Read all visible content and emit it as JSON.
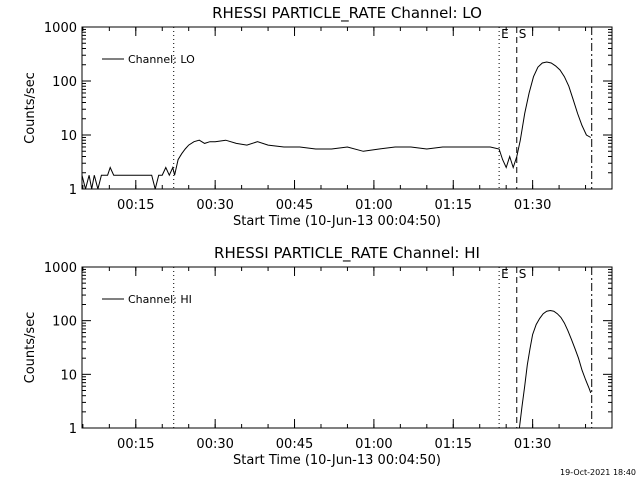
{
  "footer_timestamp": "19-Oct-2021 18:40",
  "chart_data": [
    {
      "type": "line",
      "title": "RHESSI PARTICLE_RATE Channel: LO",
      "xlabel": "Start Time (10-Jun-13 00:04:50)",
      "ylabel": "Counts/sec",
      "yscale": "log",
      "xlim": [
        "00:04:50",
        "01:45:00"
      ],
      "ylim": [
        1,
        1000
      ],
      "x_ticks": [
        "00:15",
        "00:30",
        "00:45",
        "01:00",
        "01:15",
        "01:30"
      ],
      "y_ticks": [
        "1",
        "10",
        "100",
        "1000"
      ],
      "legend": "top-left",
      "markers": [
        {
          "time": "00:22:10",
          "style": "dotted",
          "label": ""
        },
        {
          "time": "01:23:40",
          "style": "dotted",
          "label": "E"
        },
        {
          "time": "01:27:00",
          "style": "dashed",
          "label": "S"
        },
        {
          "time": "01:41:10",
          "style": "dashdot",
          "label": ""
        }
      ],
      "series": [
        {
          "name": "Channel: LO",
          "x": [
            "00:04:50",
            "00:05:30",
            "00:06:10",
            "00:06:40",
            "00:07:10",
            "00:07:50",
            "00:08:30",
            "00:09:10",
            "00:09:40",
            "00:10:10",
            "00:10:50",
            "00:11:30",
            "00:12:00",
            "00:12:30",
            "00:13:00",
            "00:13:30",
            "00:14:00",
            "00:14:40",
            "00:15:20",
            "00:16:00",
            "00:16:40",
            "00:17:20",
            "00:18:00",
            "00:18:40",
            "00:19:20",
            "00:20:00",
            "00:20:40",
            "00:21:20",
            "00:22:00",
            "00:22:20",
            "00:23:00",
            "00:23:40",
            "00:24:20",
            "00:25:00",
            "00:26:00",
            "00:27:00",
            "00:28:00",
            "00:29:00",
            "00:30:00",
            "00:32:00",
            "00:34:00",
            "00:36:00",
            "00:38:00",
            "00:40:00",
            "00:43:00",
            "00:46:00",
            "00:49:00",
            "00:52:00",
            "00:55:00",
            "00:58:00",
            "01:01:00",
            "01:04:00",
            "01:07:00",
            "01:10:00",
            "01:13:00",
            "01:16:00",
            "01:19:00",
            "01:22:00",
            "01:23:40",
            "01:24:20",
            "01:25:00",
            "01:25:40",
            "01:26:20",
            "01:27:00",
            "01:27:40",
            "01:28:30",
            "01:29:20",
            "01:30:10",
            "01:31:00",
            "01:31:50",
            "01:32:40",
            "01:33:30",
            "01:34:20",
            "01:35:10",
            "01:36:00",
            "01:36:50",
            "01:37:40",
            "01:38:30",
            "01:39:20",
            "01:40:10",
            "01:41:00"
          ],
          "y": [
            1.8,
            0.8,
            1.8,
            0.8,
            1.8,
            0.8,
            1.8,
            1.8,
            1.8,
            2.5,
            1.8,
            1.8,
            1.8,
            1.8,
            1.8,
            1.8,
            1.8,
            1.8,
            1.8,
            1.8,
            1.8,
            1.8,
            1.8,
            0.8,
            1.8,
            1.8,
            2.5,
            1.8,
            2.5,
            1.8,
            3.5,
            4.5,
            5.5,
            6.5,
            7.5,
            8,
            7,
            7.5,
            7.5,
            8,
            7,
            6.5,
            7.5,
            6.5,
            6,
            6,
            5.5,
            5.5,
            6,
            5,
            5.5,
            6,
            6,
            5.5,
            6,
            6,
            6,
            6,
            5.5,
            3.5,
            2.5,
            4,
            2.5,
            4,
            8,
            25,
            60,
            120,
            180,
            215,
            225,
            215,
            190,
            160,
            120,
            80,
            45,
            25,
            15,
            10,
            9
          ]
        }
      ]
    },
    {
      "type": "line",
      "title": "RHESSI PARTICLE_RATE Channel: HI",
      "xlabel": "Start Time (10-Jun-13 00:04:50)",
      "ylabel": "Counts/sec",
      "yscale": "log",
      "xlim": [
        "00:04:50",
        "01:45:00"
      ],
      "ylim": [
        1,
        1000
      ],
      "x_ticks": [
        "00:15",
        "00:30",
        "00:45",
        "01:00",
        "01:15",
        "01:30"
      ],
      "y_ticks": [
        "1",
        "10",
        "100",
        "1000"
      ],
      "legend": "top-left",
      "markers": [
        {
          "time": "00:22:10",
          "style": "dotted",
          "label": ""
        },
        {
          "time": "01:23:40",
          "style": "dotted",
          "label": "E"
        },
        {
          "time": "01:27:00",
          "style": "dashed",
          "label": "S"
        },
        {
          "time": "01:41:10",
          "style": "dashdot",
          "label": ""
        }
      ],
      "series": [
        {
          "name": "Channel: HI",
          "x": [
            "01:27:30",
            "01:28:00",
            "01:28:30",
            "01:29:00",
            "01:29:30",
            "01:30:00",
            "01:30:40",
            "01:31:20",
            "01:32:00",
            "01:32:40",
            "01:33:20",
            "01:34:00",
            "01:34:40",
            "01:35:20",
            "01:36:00",
            "01:36:40",
            "01:37:20",
            "01:38:00",
            "01:38:40",
            "01:39:20",
            "01:40:00",
            "01:40:40",
            "01:41:00"
          ],
          "y": [
            1,
            2.5,
            6,
            15,
            30,
            55,
            85,
            110,
            135,
            150,
            155,
            150,
            135,
            115,
            90,
            65,
            45,
            30,
            20,
            12,
            8,
            5.5,
            4.5
          ]
        }
      ]
    }
  ]
}
